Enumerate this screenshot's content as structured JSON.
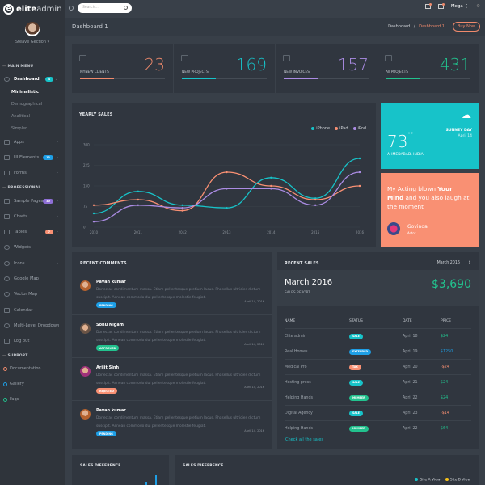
{
  "app": {
    "logo_bold": "elite",
    "logo_light": "admin",
    "logo_mark": "e"
  },
  "sidebar": {
    "user": "Steave Gection ▾",
    "sections": {
      "main": "MAIN MENU",
      "pro": "PROFESSIONAL",
      "support": "SUPPORT"
    },
    "dashboard": {
      "label": "Dashboard",
      "badge": "4",
      "badge_color": "#17c3c9"
    },
    "dashboard_sub": [
      "Minimalistic",
      "Demographical",
      "Analitical",
      "Simpler"
    ],
    "main_items": [
      {
        "label": "Apps"
      },
      {
        "label": "UI Elements",
        "badge": "13",
        "badge_color": "#1e9fe6"
      },
      {
        "label": "Forms"
      }
    ],
    "pro_items": [
      {
        "label": "Sample Pages",
        "badge": "30",
        "badge_color": "#8e6fd6"
      },
      {
        "label": "Charts"
      },
      {
        "label": "Tables",
        "badge": "7",
        "badge_color": "#f99073"
      },
      {
        "label": "Widgets"
      },
      {
        "label": "Icons"
      },
      {
        "label": "Google Map"
      },
      {
        "label": "Vector Map"
      },
      {
        "label": "Calendar"
      },
      {
        "label": "Multi-Level Dropdown"
      },
      {
        "label": "Log out"
      }
    ],
    "support_items": [
      {
        "label": "Documentation",
        "color": "#f08a6c"
      },
      {
        "label": "Gallery",
        "color": "#1e9fe6"
      },
      {
        "label": "Faqs",
        "color": "#22c28e"
      }
    ]
  },
  "topbar": {
    "search_placeholder": "Search...",
    "user": "Mega"
  },
  "page": {
    "title": "Dashboard 1",
    "crumb_home": "Dashboard",
    "crumb_sep": "/",
    "crumb_active": "Dashboard 1",
    "buy": "Buy Now"
  },
  "stats": [
    {
      "value": "23",
      "label": "MYNEW CLIENTS",
      "color": "#f08a6c"
    },
    {
      "value": "169",
      "label": "NEW PROJECTS",
      "color": "#17c3c9"
    },
    {
      "value": "157",
      "label": "NEW INVOICES",
      "color": "#ab8ce4"
    },
    {
      "value": "431",
      "label": "All PROJECTS",
      "color": "#22c28e"
    }
  ],
  "yearly": {
    "title": "YEARLY SALES",
    "legend": [
      "iPhone",
      "iPad",
      "iPod"
    ]
  },
  "chart_data": {
    "type": "line",
    "title": "YEARLY SALES",
    "x": [
      "2010",
      "2011",
      "2012",
      "2013",
      "2014",
      "2015",
      "2016"
    ],
    "yticks": [
      0,
      75,
      150,
      225,
      300
    ],
    "ylim": [
      0,
      300
    ],
    "series": [
      {
        "name": "iPhone",
        "color": "#17c3c9",
        "values": [
          50,
          130,
          80,
          70,
          180,
          105,
          250
        ]
      },
      {
        "name": "iPad",
        "color": "#f99073",
        "values": [
          80,
          100,
          60,
          200,
          150,
          100,
          150
        ]
      },
      {
        "name": "iPod",
        "color": "#ab8ce4",
        "values": [
          20,
          80,
          70,
          140,
          140,
          80,
          200
        ]
      }
    ]
  },
  "weather": {
    "temp": "73",
    "unit": "°F",
    "day": "SUNNEY DAY",
    "date": "April 14",
    "city": "AHMEDABAD, INDIA"
  },
  "quote": {
    "pre": "My Acting blown ",
    "b1": "Your",
    "b2": "Mind",
    "post": " and you also laugh at the moment",
    "name": "Govinda",
    "role": "Actor"
  },
  "comments": {
    "title": "RECENT COMMENTS",
    "items": [
      {
        "name": "Pavan kumar",
        "text": "Donec ac condimentum massa. Etiam pellentesque pretium lacus. Phasellus ultricies dictum suscipit. Aenean commodo dui pellentesque molestie feugiat.",
        "status": "PENDING",
        "status_color": "#1e9fe6",
        "date": "April 14, 2016",
        "avatar": "#b5622e"
      },
      {
        "name": "Sonu Nigam",
        "text": "Donec ac condimentum massa. Etiam pellentesque pretium lacus. Phasellus ultricies dictum suscipit. Aenean commodo dui pellentesque molestie feugiat.",
        "status": "APPROVED",
        "status_color": "#22c28e",
        "date": "April 14, 2016",
        "avatar": "#6a5446"
      },
      {
        "name": "Arijit Sinh",
        "text": "Donec ac condimentum massa. Etiam pellentesque pretium lacus. Phasellus ultricies dictum suscipit. Aenean commodo dui pellentesque molestie feugiat.",
        "status": "REJECTED",
        "status_color": "#f99073",
        "date": "April 14, 2016",
        "avatar": "#a0327a"
      },
      {
        "name": "Pavan kumar",
        "text": "Donec ac condimentum massa. Etiam pellentesque pretium lacus. Phasellus ultricies dictum suscipit. Aenean commodo dui pellentesque molestie feugiat.",
        "status": "PENDING",
        "status_color": "#1e9fe6",
        "date": "April 14, 2016",
        "avatar": "#b5622e"
      }
    ]
  },
  "sales": {
    "title": "RECENT SALES",
    "month_select": "March 2016",
    "period": "March 2016",
    "report": "SALES REPORT",
    "total": "$3,690",
    "headers": [
      "NAME",
      "STATUS",
      "DATE",
      "PRICE"
    ],
    "rows": [
      {
        "name": "Elite admin",
        "status": "SALE",
        "sc": "#17c3c9",
        "date": "April 18",
        "price": "$24",
        "pc": "#22c28e"
      },
      {
        "name": "Real Homes",
        "status": "EXTENDED",
        "sc": "#1e9fe6",
        "date": "April 19",
        "price": "$1250",
        "pc": "#1e9fe6"
      },
      {
        "name": "Medical Pro",
        "status": "TAX",
        "sc": "#f99073",
        "date": "April 20",
        "price": "-$24",
        "pc": "#f99073"
      },
      {
        "name": "Hosting press",
        "status": "SALE",
        "sc": "#17c3c9",
        "date": "April 21",
        "price": "$24",
        "pc": "#22c28e"
      },
      {
        "name": "Helping Hands",
        "status": "MEMBER",
        "sc": "#22c28e",
        "date": "April 22",
        "price": "$24",
        "pc": "#22c28e"
      },
      {
        "name": "Digital Agency",
        "status": "SALE",
        "sc": "#17c3c9",
        "date": "April 23",
        "price": "-$14",
        "pc": "#f99073"
      },
      {
        "name": "Helping Hands",
        "status": "MEMBER",
        "sc": "#22c28e",
        "date": "April 22",
        "price": "$64",
        "pc": "#22c28e"
      }
    ],
    "link": "Check all the sales"
  },
  "diff1": {
    "title": "SALES DIFFERENCE"
  },
  "diff2": {
    "title": "SALES DIFFERENCE",
    "legend": [
      "Site A View",
      "Site B View"
    ]
  }
}
